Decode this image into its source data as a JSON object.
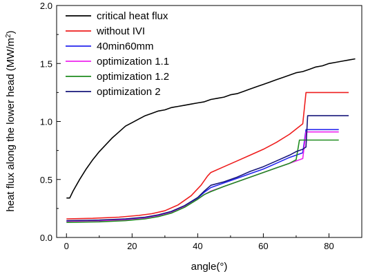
{
  "chart_data": {
    "type": "line",
    "xlabel": "angle(°)",
    "ylabel_main": "heat flux along the lower head (MW/m",
    "ylabel_sup": "2",
    "ylabel_end": ")",
    "xlim": [
      -3,
      90
    ],
    "ylim": [
      0.0,
      2.0
    ],
    "xticks": [
      0,
      20,
      40,
      60,
      80
    ],
    "yticks": [
      0.0,
      0.5,
      1.0,
      1.5,
      2.0
    ],
    "xtick_labels": [
      "0",
      "20",
      "40",
      "60",
      "80"
    ],
    "ytick_labels": [
      "0.0",
      "0.5",
      "1.0",
      "1.5",
      "2.0"
    ],
    "legend_position": "top-left",
    "series": [
      {
        "name": "critical heat flux",
        "color": "#000000",
        "points": [
          [
            0,
            0.34
          ],
          [
            1,
            0.34
          ],
          [
            2,
            0.4
          ],
          [
            4,
            0.5
          ],
          [
            6,
            0.59
          ],
          [
            8,
            0.67
          ],
          [
            10,
            0.74
          ],
          [
            12,
            0.8
          ],
          [
            14,
            0.86
          ],
          [
            16,
            0.91
          ],
          [
            18,
            0.96
          ],
          [
            20,
            0.99
          ],
          [
            22,
            1.02
          ],
          [
            24,
            1.05
          ],
          [
            26,
            1.07
          ],
          [
            28,
            1.09
          ],
          [
            30,
            1.1
          ],
          [
            32,
            1.12
          ],
          [
            34,
            1.13
          ],
          [
            36,
            1.14
          ],
          [
            38,
            1.15
          ],
          [
            40,
            1.16
          ],
          [
            42,
            1.17
          ],
          [
            44,
            1.19
          ],
          [
            46,
            1.2
          ],
          [
            48,
            1.21
          ],
          [
            50,
            1.23
          ],
          [
            52,
            1.24
          ],
          [
            54,
            1.26
          ],
          [
            56,
            1.28
          ],
          [
            58,
            1.3
          ],
          [
            60,
            1.32
          ],
          [
            62,
            1.34
          ],
          [
            64,
            1.36
          ],
          [
            66,
            1.38
          ],
          [
            68,
            1.4
          ],
          [
            70,
            1.42
          ],
          [
            72,
            1.43
          ],
          [
            74,
            1.45
          ],
          [
            76,
            1.47
          ],
          [
            78,
            1.48
          ],
          [
            80,
            1.5
          ],
          [
            82,
            1.51
          ],
          [
            84,
            1.52
          ],
          [
            86,
            1.53
          ],
          [
            88,
            1.54
          ]
        ]
      },
      {
        "name": "without IVI",
        "color": "#ee1c1c",
        "points": [
          [
            0,
            0.16
          ],
          [
            8,
            0.165
          ],
          [
            16,
            0.175
          ],
          [
            22,
            0.19
          ],
          [
            26,
            0.205
          ],
          [
            30,
            0.23
          ],
          [
            34,
            0.28
          ],
          [
            38,
            0.36
          ],
          [
            41,
            0.45
          ],
          [
            43,
            0.53
          ],
          [
            44,
            0.56
          ],
          [
            48,
            0.61
          ],
          [
            52,
            0.66
          ],
          [
            56,
            0.71
          ],
          [
            60,
            0.76
          ],
          [
            64,
            0.82
          ],
          [
            68,
            0.89
          ],
          [
            72,
            0.98
          ],
          [
            73,
            1.25
          ],
          [
            86,
            1.25
          ]
        ]
      },
      {
        "name": "40min60mm",
        "color": "#2222ee",
        "points": [
          [
            0,
            0.14
          ],
          [
            10,
            0.145
          ],
          [
            18,
            0.155
          ],
          [
            24,
            0.17
          ],
          [
            28,
            0.19
          ],
          [
            32,
            0.22
          ],
          [
            36,
            0.27
          ],
          [
            40,
            0.34
          ],
          [
            42,
            0.39
          ],
          [
            44,
            0.43
          ],
          [
            48,
            0.47
          ],
          [
            52,
            0.51
          ],
          [
            56,
            0.55
          ],
          [
            60,
            0.59
          ],
          [
            64,
            0.64
          ],
          [
            68,
            0.69
          ],
          [
            71,
            0.72
          ],
          [
            72,
            0.73
          ],
          [
            73,
            0.93
          ],
          [
            83,
            0.93
          ]
        ]
      },
      {
        "name": "optimization 1.1",
        "color": "#ee22ee",
        "points": [
          [
            0,
            0.14
          ],
          [
            10,
            0.145
          ],
          [
            18,
            0.15
          ],
          [
            24,
            0.165
          ],
          [
            28,
            0.185
          ],
          [
            32,
            0.215
          ],
          [
            36,
            0.265
          ],
          [
            40,
            0.33
          ],
          [
            42,
            0.37
          ],
          [
            44,
            0.4
          ],
          [
            48,
            0.44
          ],
          [
            52,
            0.48
          ],
          [
            56,
            0.52
          ],
          [
            60,
            0.56
          ],
          [
            64,
            0.6
          ],
          [
            68,
            0.64
          ],
          [
            71,
            0.67
          ],
          [
            72,
            0.68
          ],
          [
            73,
            0.91
          ],
          [
            83,
            0.91
          ]
        ]
      },
      {
        "name": "optimization 1.2",
        "color": "#1e8c1e",
        "points": [
          [
            0,
            0.13
          ],
          [
            10,
            0.135
          ],
          [
            18,
            0.145
          ],
          [
            24,
            0.16
          ],
          [
            28,
            0.18
          ],
          [
            32,
            0.21
          ],
          [
            36,
            0.26
          ],
          [
            40,
            0.33
          ],
          [
            42,
            0.37
          ],
          [
            44,
            0.395
          ],
          [
            48,
            0.44
          ],
          [
            52,
            0.48
          ],
          [
            56,
            0.52
          ],
          [
            60,
            0.56
          ],
          [
            64,
            0.6
          ],
          [
            68,
            0.64
          ],
          [
            70,
            0.67
          ],
          [
            71,
            0.84
          ],
          [
            83,
            0.84
          ]
        ]
      },
      {
        "name": "optimization 2",
        "color": "#16167a",
        "points": [
          [
            0,
            0.145
          ],
          [
            10,
            0.15
          ],
          [
            18,
            0.16
          ],
          [
            24,
            0.175
          ],
          [
            28,
            0.195
          ],
          [
            32,
            0.225
          ],
          [
            36,
            0.275
          ],
          [
            40,
            0.345
          ],
          [
            42,
            0.4
          ],
          [
            44,
            0.45
          ],
          [
            48,
            0.48
          ],
          [
            52,
            0.52
          ],
          [
            56,
            0.57
          ],
          [
            60,
            0.61
          ],
          [
            64,
            0.66
          ],
          [
            68,
            0.71
          ],
          [
            70,
            0.74
          ],
          [
            72,
            0.76
          ],
          [
            73,
            0.78
          ],
          [
            73.5,
            1.05
          ],
          [
            86,
            1.05
          ]
        ]
      }
    ]
  }
}
